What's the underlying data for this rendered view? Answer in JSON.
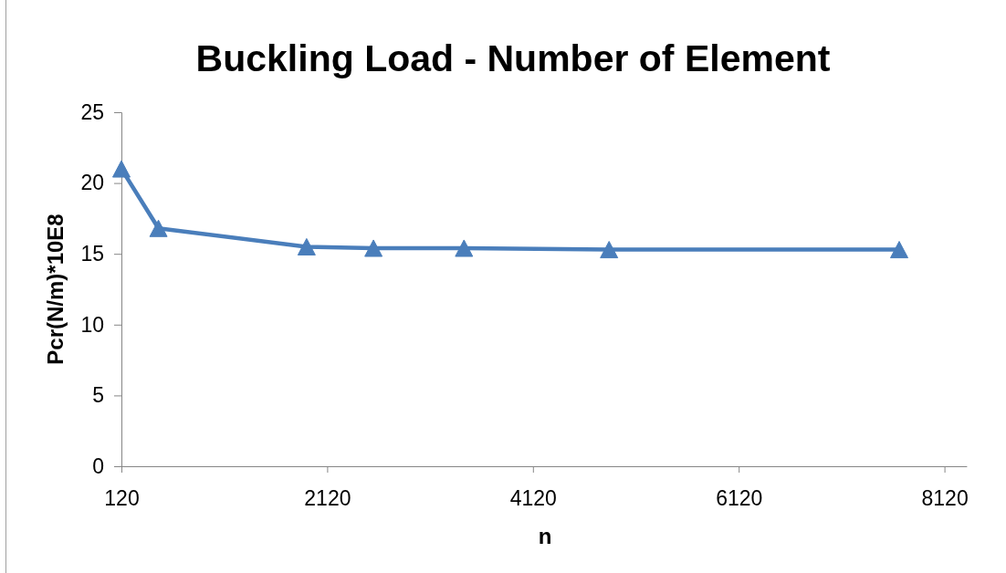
{
  "chart_data": {
    "type": "line",
    "title": "Buckling Load - Number of Element",
    "xlabel": "n",
    "ylabel": "Pcr(N/m)*10E8",
    "x": [
      120,
      480,
      1920,
      2570,
      3450,
      4860,
      7680
    ],
    "series": [
      {
        "color": "#4a7ebb",
        "values": [
          21.0,
          16.8,
          15.5,
          15.4,
          15.4,
          15.3,
          15.3
        ]
      }
    ],
    "xlim": [
      120,
      8340
    ],
    "xticks": [
      120,
      2120,
      4120,
      6120,
      8120
    ],
    "ylim": [
      0,
      25
    ],
    "yticks": [
      0,
      5,
      10,
      15,
      20,
      25
    ],
    "marker": "triangle",
    "line_style": "solid"
  }
}
